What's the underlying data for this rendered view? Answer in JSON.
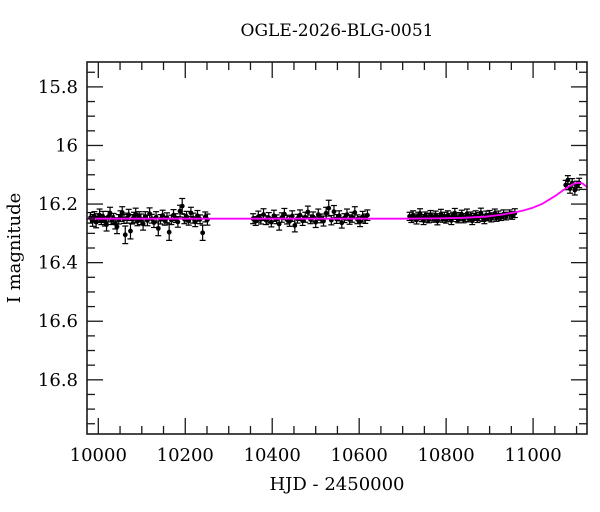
{
  "chart_data": {
    "type": "scatter",
    "title": "OGLE-2026-BLG-0051",
    "xlabel": "HJD - 2450000",
    "ylabel": "I magnitude",
    "xlim": [
      9974,
      11124
    ],
    "ylim": [
      15.715,
      16.985
    ],
    "y_axis_inverted": true,
    "grid": false,
    "x_major_ticks": [
      10000,
      10200,
      10400,
      10600,
      10800,
      11000
    ],
    "x_tick_labels": [
      "10000",
      "10200",
      "10400",
      "10600",
      "10800",
      "11000"
    ],
    "x_minor_step": 50,
    "y_major_ticks": [
      15.8,
      16.0,
      16.2,
      16.4,
      16.6,
      16.8
    ],
    "y_tick_labels": [
      "15.8",
      "16",
      "16.2",
      "16.4",
      "16.6",
      "16.8"
    ],
    "y_minor_step": 0.05,
    "baseline_magnitude": 16.25,
    "colors": {
      "model": "#ff00ff",
      "points": "#000000",
      "axis": "#1a1a1a",
      "background": "#ffffff"
    },
    "model_curve": [
      [
        9974,
        16.25
      ],
      [
        10150,
        16.25
      ],
      [
        10350,
        16.25
      ],
      [
        10550,
        16.25
      ],
      [
        10700,
        16.25
      ],
      [
        10780,
        16.249
      ],
      [
        10840,
        16.247
      ],
      [
        10890,
        16.243
      ],
      [
        10925,
        16.237
      ],
      [
        10955,
        16.229
      ],
      [
        10980,
        16.221
      ],
      [
        11000,
        16.212
      ],
      [
        11020,
        16.2
      ],
      [
        11040,
        16.182
      ],
      [
        11055,
        16.168
      ],
      [
        11070,
        16.152
      ],
      [
        11082,
        16.14
      ],
      [
        11092,
        16.132
      ],
      [
        11100,
        16.128
      ],
      [
        11107,
        16.127
      ],
      [
        11114,
        16.13
      ],
      [
        11124,
        16.142
      ]
    ],
    "points": [
      [
        9982,
        16.247,
        0.018
      ],
      [
        9987,
        16.256,
        0.02
      ],
      [
        9991,
        16.242,
        0.016
      ],
      [
        9995,
        16.262,
        0.019
      ],
      [
        9999,
        16.248,
        0.015
      ],
      [
        10003,
        16.238,
        0.021
      ],
      [
        10007,
        16.253,
        0.017
      ],
      [
        10011,
        16.244,
        0.019
      ],
      [
        10015,
        16.259,
        0.016
      ],
      [
        10019,
        16.27,
        0.022
      ],
      [
        10023,
        16.243,
        0.018
      ],
      [
        10027,
        16.231,
        0.02
      ],
      [
        10031,
        16.255,
        0.015
      ],
      [
        10035,
        16.249,
        0.017
      ],
      [
        10039,
        16.266,
        0.019
      ],
      [
        10043,
        16.277,
        0.024
      ],
      [
        10047,
        16.252,
        0.016
      ],
      [
        10051,
        16.241,
        0.018
      ],
      [
        10055,
        16.229,
        0.02
      ],
      [
        10059,
        16.251,
        0.015
      ],
      [
        10062,
        16.305,
        0.03
      ],
      [
        10066,
        16.248,
        0.017
      ],
      [
        10070,
        16.237,
        0.019
      ],
      [
        10074,
        16.292,
        0.027
      ],
      [
        10078,
        16.252,
        0.016
      ],
      [
        10082,
        16.246,
        0.018
      ],
      [
        10086,
        16.234,
        0.02
      ],
      [
        10090,
        16.259,
        0.015
      ],
      [
        10094,
        16.243,
        0.017
      ],
      [
        10098,
        16.252,
        0.018
      ],
      [
        10103,
        16.268,
        0.021
      ],
      [
        10108,
        16.242,
        0.016
      ],
      [
        10113,
        16.256,
        0.018
      ],
      [
        10118,
        16.233,
        0.02
      ],
      [
        10123,
        16.25,
        0.015
      ],
      [
        10128,
        16.263,
        0.017
      ],
      [
        10133,
        16.245,
        0.019
      ],
      [
        10138,
        16.283,
        0.025
      ],
      [
        10143,
        16.252,
        0.016
      ],
      [
        10148,
        16.239,
        0.018
      ],
      [
        10153,
        16.257,
        0.015
      ],
      [
        10158,
        16.247,
        0.017
      ],
      [
        10163,
        16.296,
        0.028
      ],
      [
        10168,
        16.254,
        0.016
      ],
      [
        10173,
        16.238,
        0.019
      ],
      [
        10178,
        16.248,
        0.015
      ],
      [
        10183,
        16.261,
        0.018
      ],
      [
        10188,
        16.224,
        0.02
      ],
      [
        10193,
        16.207,
        0.026
      ],
      [
        10198,
        16.251,
        0.016
      ],
      [
        10203,
        16.243,
        0.018
      ],
      [
        10208,
        16.257,
        0.015
      ],
      [
        10213,
        16.23,
        0.019
      ],
      [
        10218,
        16.248,
        0.017
      ],
      [
        10223,
        16.261,
        0.016
      ],
      [
        10228,
        16.24,
        0.018
      ],
      [
        10234,
        16.252,
        0.015
      ],
      [
        10240,
        16.298,
        0.026
      ],
      [
        10246,
        16.244,
        0.017
      ],
      [
        10251,
        16.253,
        0.019
      ],
      [
        10356,
        16.25,
        0.017
      ],
      [
        10362,
        16.258,
        0.015
      ],
      [
        10368,
        16.243,
        0.019
      ],
      [
        10374,
        16.252,
        0.016
      ],
      [
        10380,
        16.236,
        0.02
      ],
      [
        10386,
        16.255,
        0.015
      ],
      [
        10392,
        16.247,
        0.018
      ],
      [
        10398,
        16.262,
        0.016
      ],
      [
        10404,
        16.24,
        0.019
      ],
      [
        10410,
        16.252,
        0.015
      ],
      [
        10416,
        16.268,
        0.021
      ],
      [
        10422,
        16.246,
        0.016
      ],
      [
        10428,
        16.234,
        0.019
      ],
      [
        10434,
        16.253,
        0.015
      ],
      [
        10440,
        16.259,
        0.017
      ],
      [
        10446,
        16.241,
        0.018
      ],
      [
        10452,
        16.273,
        0.022
      ],
      [
        10458,
        16.25,
        0.015
      ],
      [
        10464,
        16.238,
        0.018
      ],
      [
        10470,
        16.257,
        0.016
      ],
      [
        10476,
        16.245,
        0.017
      ],
      [
        10482,
        16.227,
        0.02
      ],
      [
        10488,
        16.252,
        0.015
      ],
      [
        10494,
        16.244,
        0.017
      ],
      [
        10500,
        16.262,
        0.018
      ],
      [
        10506,
        16.236,
        0.019
      ],
      [
        10512,
        16.249,
        0.015
      ],
      [
        10518,
        16.258,
        0.017
      ],
      [
        10524,
        16.231,
        0.02
      ],
      [
        10530,
        16.214,
        0.027
      ],
      [
        10536,
        16.255,
        0.016
      ],
      [
        10542,
        16.226,
        0.021
      ],
      [
        10548,
        16.251,
        0.015
      ],
      [
        10554,
        16.24,
        0.017
      ],
      [
        10560,
        16.264,
        0.018
      ],
      [
        10566,
        16.248,
        0.015
      ],
      [
        10572,
        16.236,
        0.019
      ],
      [
        10578,
        16.253,
        0.016
      ],
      [
        10584,
        16.245,
        0.017
      ],
      [
        10590,
        16.229,
        0.02
      ],
      [
        10596,
        16.252,
        0.015
      ],
      [
        10602,
        16.26,
        0.017
      ],
      [
        10608,
        16.243,
        0.018
      ],
      [
        10614,
        16.25,
        0.016
      ],
      [
        10619,
        16.238,
        0.018
      ],
      [
        10716,
        16.242,
        0.014
      ],
      [
        10720,
        16.25,
        0.013
      ],
      [
        10724,
        16.238,
        0.015
      ],
      [
        10728,
        16.246,
        0.012
      ],
      [
        10732,
        16.254,
        0.014
      ],
      [
        10736,
        16.241,
        0.013
      ],
      [
        10740,
        16.232,
        0.016
      ],
      [
        10744,
        16.248,
        0.012
      ],
      [
        10748,
        16.256,
        0.014
      ],
      [
        10752,
        16.24,
        0.013
      ],
      [
        10756,
        16.247,
        0.015
      ],
      [
        10760,
        16.252,
        0.012
      ],
      [
        10764,
        16.236,
        0.014
      ],
      [
        10768,
        16.244,
        0.013
      ],
      [
        10772,
        16.25,
        0.012
      ],
      [
        10776,
        16.239,
        0.015
      ],
      [
        10780,
        16.258,
        0.013
      ],
      [
        10784,
        16.245,
        0.012
      ],
      [
        10788,
        16.234,
        0.016
      ],
      [
        10792,
        16.249,
        0.013
      ],
      [
        10796,
        16.242,
        0.014
      ],
      [
        10800,
        16.253,
        0.012
      ],
      [
        10804,
        16.238,
        0.015
      ],
      [
        10808,
        16.246,
        0.013
      ],
      [
        10812,
        16.256,
        0.014
      ],
      [
        10816,
        16.24,
        0.012
      ],
      [
        10820,
        16.231,
        0.016
      ],
      [
        10824,
        16.247,
        0.013
      ],
      [
        10828,
        16.252,
        0.012
      ],
      [
        10832,
        16.243,
        0.014
      ],
      [
        10836,
        16.236,
        0.015
      ],
      [
        10840,
        16.252,
        0.012
      ],
      [
        10844,
        16.246,
        0.013
      ],
      [
        10848,
        16.233,
        0.016
      ],
      [
        10852,
        16.249,
        0.012
      ],
      [
        10856,
        16.241,
        0.014
      ],
      [
        10860,
        16.257,
        0.013
      ],
      [
        10864,
        16.244,
        0.012
      ],
      [
        10868,
        16.238,
        0.015
      ],
      [
        10872,
        16.25,
        0.013
      ],
      [
        10876,
        16.243,
        0.014
      ],
      [
        10880,
        16.23,
        0.016
      ],
      [
        10884,
        16.247,
        0.012
      ],
      [
        10888,
        16.254,
        0.013
      ],
      [
        10892,
        16.239,
        0.015
      ],
      [
        10896,
        16.245,
        0.012
      ],
      [
        10900,
        16.236,
        0.014
      ],
      [
        10904,
        16.248,
        0.013
      ],
      [
        10908,
        16.242,
        0.012
      ],
      [
        10912,
        16.232,
        0.015
      ],
      [
        10916,
        16.246,
        0.013
      ],
      [
        10920,
        16.238,
        0.014
      ],
      [
        10926,
        16.244,
        0.012
      ],
      [
        10932,
        16.235,
        0.015
      ],
      [
        10938,
        16.241,
        0.013
      ],
      [
        10946,
        16.234,
        0.014
      ],
      [
        10952,
        16.239,
        0.013
      ],
      [
        10958,
        16.231,
        0.015
      ],
      [
        11075,
        16.135,
        0.016
      ],
      [
        11080,
        16.118,
        0.015
      ],
      [
        11085,
        16.147,
        0.016
      ],
      [
        11090,
        16.128,
        0.015
      ],
      [
        11096,
        16.152,
        0.017
      ],
      [
        11101,
        16.137,
        0.015
      ],
      [
        11106,
        16.128,
        0.016
      ]
    ]
  }
}
